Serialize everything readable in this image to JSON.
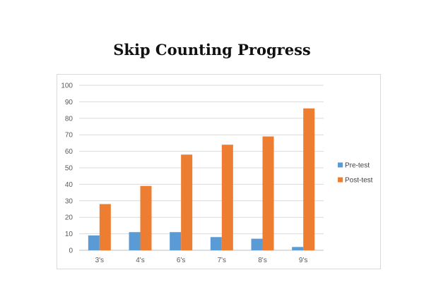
{
  "chart_data": {
    "type": "bar",
    "title": "Skip Counting Progress",
    "categories": [
      "3's",
      "4's",
      "6's",
      "7's",
      "8's",
      "9's"
    ],
    "series": [
      {
        "name": "Pre-test",
        "color": "#5b9bd5",
        "values": [
          9,
          11,
          11,
          8,
          7,
          2
        ]
      },
      {
        "name": "Post-test",
        "color": "#ed7d31",
        "values": [
          28,
          39,
          58,
          64,
          69,
          86
        ]
      }
    ],
    "ylim": [
      0,
      100
    ],
    "yticks": [
      0,
      10,
      20,
      30,
      40,
      50,
      60,
      70,
      80,
      90,
      100
    ],
    "grid": true,
    "legend_position": "right"
  }
}
